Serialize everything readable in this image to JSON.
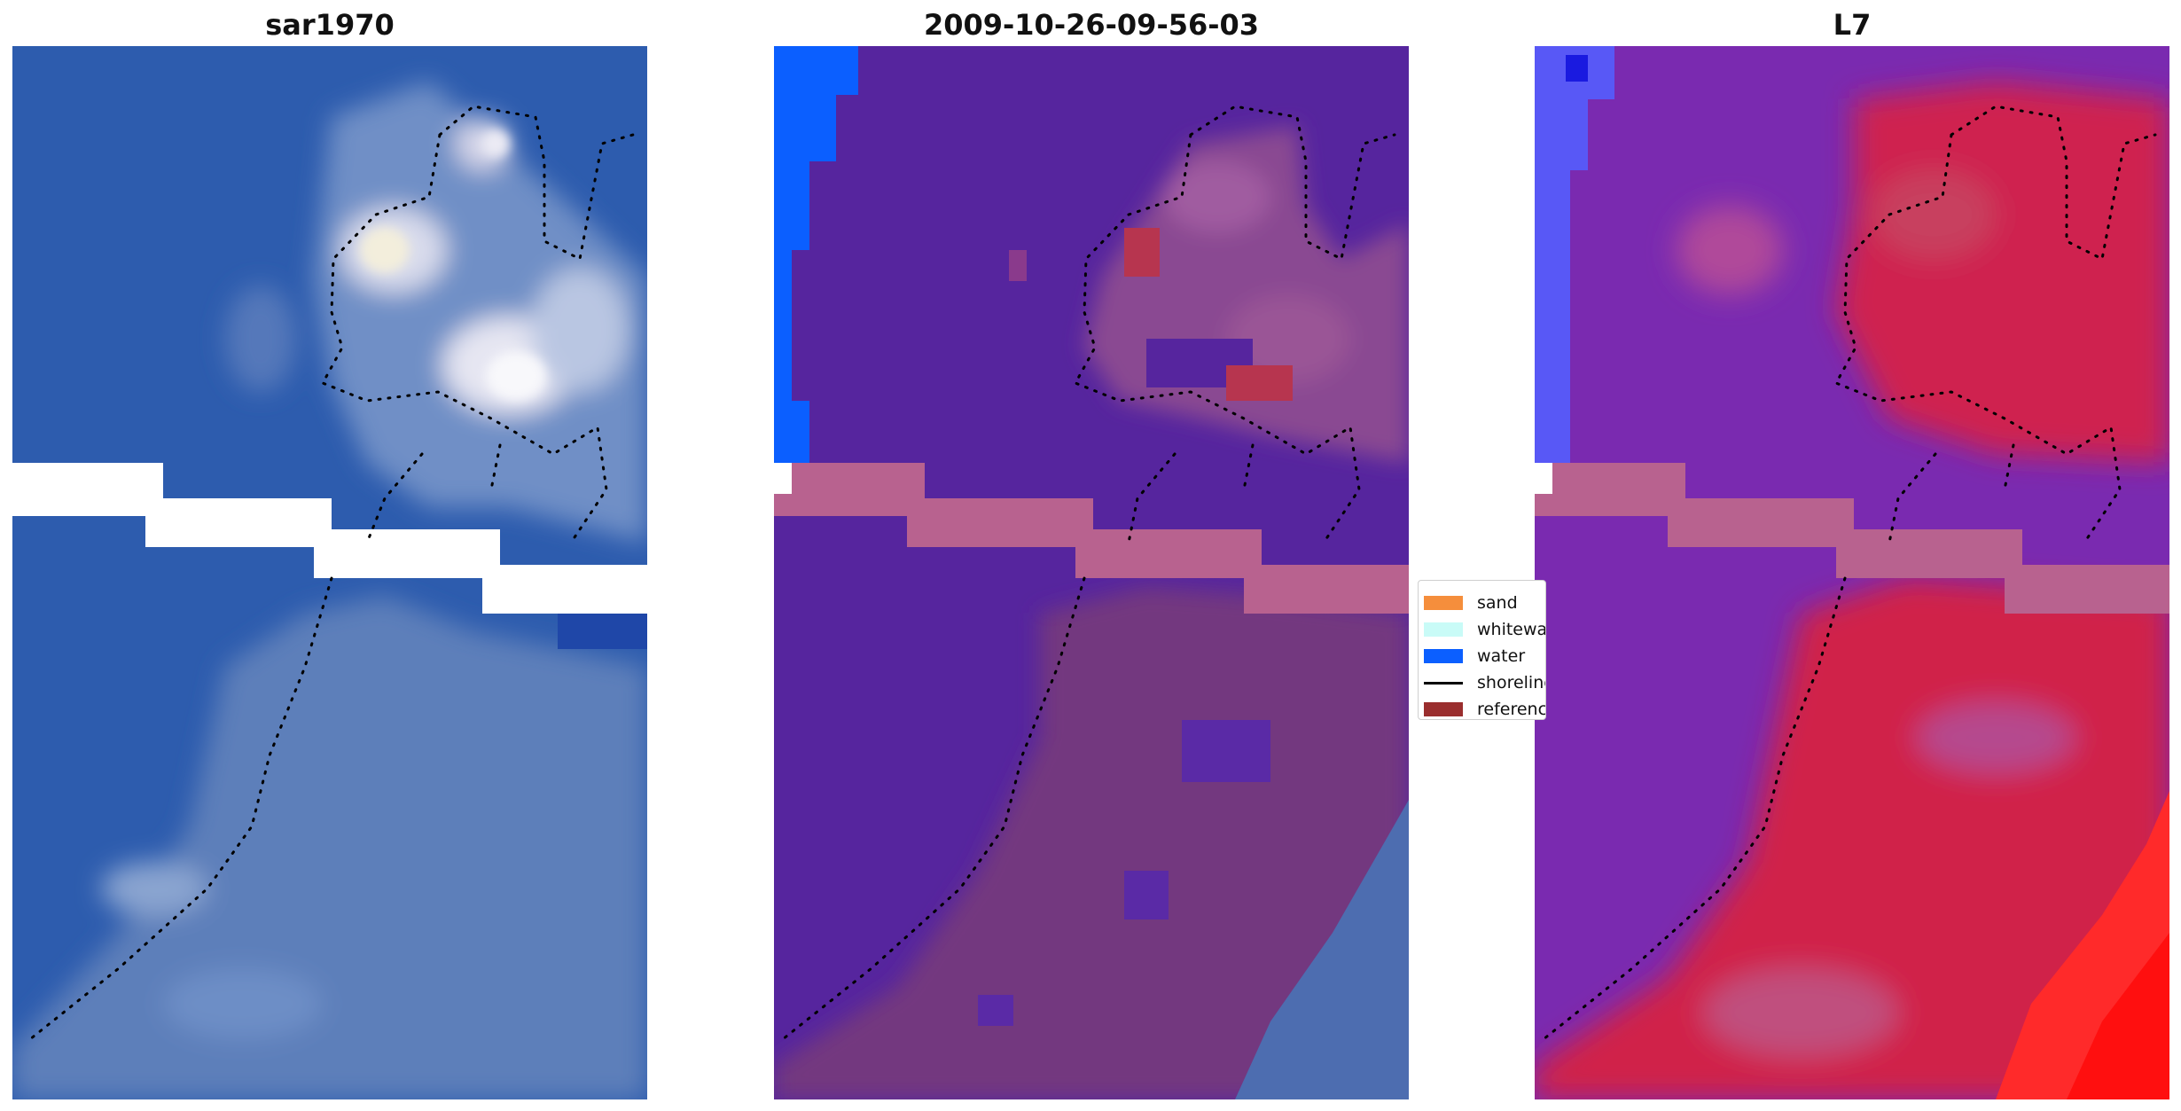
{
  "panels": [
    {
      "title": "sar1970"
    },
    {
      "title": "2009-10-26-09-56-03"
    },
    {
      "title": "L7"
    }
  ],
  "legend": {
    "items": [
      {
        "label": "sand",
        "color": "#f58e3c",
        "kind": "patch"
      },
      {
        "label": "whitewater",
        "color": "#c9fbf7",
        "kind": "patch"
      },
      {
        "label": "water",
        "color": "#0b5fff",
        "kind": "patch"
      },
      {
        "label": "shoreline",
        "color": "#000000",
        "kind": "line"
      },
      {
        "label": "reference",
        "color": "#9a2e2e",
        "kind": "patch"
      }
    ]
  },
  "colors": {
    "rgb_water": "#2f5fb0",
    "rgb_land": "#7d96c4",
    "class_background": "#56259e",
    "class_land": "#7a3a86",
    "class_nodata": "#b8628f",
    "ndvi_low": "#7a2ab0",
    "ndvi_high": "#d01a4a"
  }
}
